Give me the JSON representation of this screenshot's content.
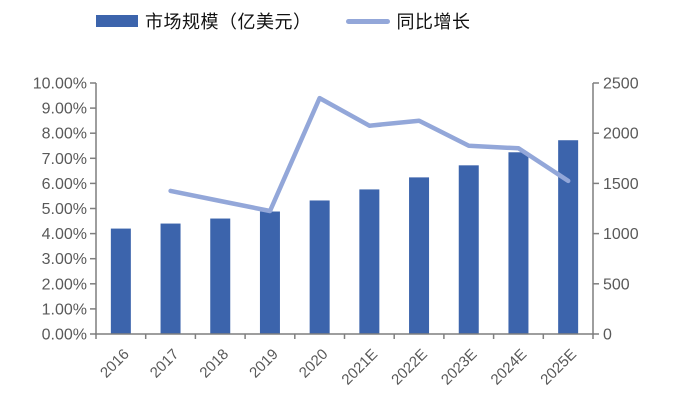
{
  "legend": {
    "bar_label": "市场规模（亿美元）",
    "line_label": "同比增长"
  },
  "chart_data": {
    "type": "bar",
    "title": "",
    "categories": [
      "2016",
      "2017",
      "2018",
      "2019",
      "2020",
      "2021E",
      "2022E",
      "2023E",
      "2024E",
      "2025E"
    ],
    "series": [
      {
        "name": "市场规模（亿美元）",
        "type": "bar",
        "axis": "right",
        "color": "#3C64AC",
        "values": [
          1050,
          1100,
          1150,
          1220,
          1330,
          1440,
          1560,
          1680,
          1810,
          1930
        ]
      },
      {
        "name": "同比增长",
        "type": "line",
        "axis": "left",
        "color": "#93A7D9",
        "values": [
          null,
          5.7,
          5.3,
          4.9,
          9.4,
          8.3,
          8.5,
          7.5,
          7.4,
          6.1
        ]
      }
    ],
    "left_axis": {
      "min": 0,
      "max": 10,
      "ticks": [
        "0.00%",
        "1.00%",
        "2.00%",
        "3.00%",
        "4.00%",
        "5.00%",
        "6.00%",
        "7.00%",
        "8.00%",
        "9.00%",
        "10.00%"
      ]
    },
    "right_axis": {
      "min": 0,
      "max": 2500,
      "ticks": [
        "0",
        "500",
        "1000",
        "1500",
        "2000",
        "2500"
      ]
    },
    "legend_position": "top",
    "grid": false,
    "colors": {
      "axis_line": "#7F7F7F",
      "tick_label": "#595959"
    }
  }
}
